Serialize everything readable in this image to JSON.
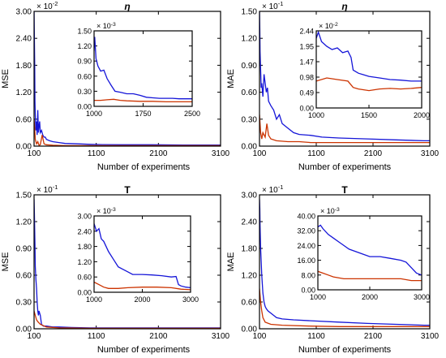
{
  "chart_data": [
    {
      "type": "line",
      "title": "η",
      "xlabel": "Number of experiments",
      "ylabel": "MSE",
      "xlim": [
        100,
        3100
      ],
      "ylim": [
        0,
        3.0
      ],
      "xticks": [
        "100",
        "1100",
        "2100",
        "3100"
      ],
      "yticks": [
        "0.00",
        "0.60",
        "1.20",
        "1.80",
        "2.40",
        "3.00"
      ],
      "exponent": "× 10^-2",
      "series": [
        {
          "color": "#1515d8",
          "x": [
            100,
            105,
            110,
            115,
            120,
            130,
            140,
            150,
            160,
            170,
            180,
            190,
            200,
            220,
            240,
            260,
            280,
            300,
            350,
            400,
            500,
            600,
            800,
            1000,
            1200,
            1500,
            2000,
            2500,
            3000,
            3100
          ],
          "values": [
            3.0,
            2.4,
            1.8,
            1.0,
            0.7,
            0.35,
            0.55,
            0.25,
            0.8,
            0.3,
            0.45,
            0.55,
            0.3,
            0.35,
            0.25,
            0.2,
            0.2,
            0.15,
            0.12,
            0.1,
            0.08,
            0.06,
            0.05,
            0.04,
            0.035,
            0.03,
            0.03,
            0.025,
            0.025,
            0.025
          ]
        },
        {
          "color": "#cc3300",
          "x": [
            100,
            110,
            120,
            140,
            160,
            180,
            200,
            230,
            260,
            300,
            400,
            600,
            1000,
            1500,
            2000,
            3100
          ],
          "values": [
            0.6,
            0.4,
            0.15,
            0.05,
            0.1,
            0.02,
            0.03,
            0.25,
            0.05,
            0.03,
            0.02,
            0.01,
            0.01,
            0.01,
            0.01,
            0.01
          ]
        }
      ],
      "inset": {
        "xlim": [
          1000,
          2500
        ],
        "ylim": [
          0,
          1.5
        ],
        "xticks": [
          "1000",
          "1750",
          "2500"
        ],
        "yticks": [
          "0.00",
          "0.30",
          "0.60",
          "0.90",
          "1.20",
          "1.50"
        ],
        "exponent": "× 10^-3",
        "series": [
          {
            "color": "#1515d8",
            "x": [
              1000,
              1010,
              1030,
              1060,
              1100,
              1150,
              1200,
              1260,
              1320,
              1400,
              1500,
              1600,
              1700,
              1800,
              1900,
              2000,
              2100,
              2200,
              2300,
              2400,
              2500
            ],
            "values": [
              1.1,
              1.38,
              0.95,
              0.8,
              0.7,
              0.72,
              0.55,
              0.42,
              0.3,
              0.28,
              0.25,
              0.25,
              0.22,
              0.18,
              0.17,
              0.16,
              0.16,
              0.16,
              0.15,
              0.15,
              0.15
            ]
          },
          {
            "color": "#cc3300",
            "x": [
              1000,
              1100,
              1200,
              1300,
              1400,
              1500,
              1700,
              1900,
              2100,
              2300,
              2500
            ],
            "values": [
              0.12,
              0.12,
              0.13,
              0.14,
              0.12,
              0.11,
              0.1,
              0.1,
              0.09,
              0.09,
              0.09
            ]
          }
        ]
      }
    },
    {
      "type": "line",
      "title": "η",
      "xlabel": "Number of experiments",
      "ylabel": "MAE",
      "xlim": [
        100,
        3100
      ],
      "ylim": [
        0,
        1.5
      ],
      "xticks": [
        "100",
        "1100",
        "2100",
        "3100"
      ],
      "yticks": [
        "0.00",
        "0.30",
        "0.60",
        "0.90",
        "1.20",
        "1.50"
      ],
      "exponent": "× 10^-1",
      "series": [
        {
          "color": "#1515d8",
          "x": [
            100,
            105,
            110,
            120,
            130,
            140,
            160,
            180,
            200,
            220,
            240,
            260,
            300,
            350,
            400,
            450,
            500,
            600,
            700,
            800,
            1000,
            1200,
            1500,
            2000,
            2500,
            3000,
            3100
          ],
          "values": [
            1.5,
            1.3,
            1.05,
            0.85,
            0.65,
            0.7,
            0.55,
            0.8,
            0.7,
            0.6,
            0.65,
            0.5,
            0.45,
            0.4,
            0.3,
            0.35,
            0.25,
            0.2,
            0.15,
            0.13,
            0.12,
            0.1,
            0.09,
            0.08,
            0.07,
            0.06,
            0.06
          ]
        },
        {
          "color": "#cc3300",
          "x": [
            100,
            110,
            120,
            140,
            160,
            200,
            230,
            260,
            300,
            400,
            600,
            800,
            1000,
            1500,
            2000,
            2500,
            3100
          ],
          "values": [
            0.35,
            0.25,
            0.15,
            0.08,
            0.15,
            0.1,
            0.25,
            0.12,
            0.08,
            0.06,
            0.05,
            0.05,
            0.04,
            0.04,
            0.04,
            0.04,
            0.04
          ]
        }
      ],
      "inset": {
        "xlim": [
          1000,
          2000
        ],
        "ylim": [
          0,
          2.44
        ],
        "xticks": [
          "1000",
          "1500",
          "2000"
        ],
        "yticks": [
          "0.00",
          "0.49",
          "0.98",
          "1.47",
          "1.95",
          "2.44"
        ],
        "exponent": "× 10^-2",
        "series": [
          {
            "color": "#1515d8",
            "x": [
              1000,
              1020,
              1050,
              1100,
              1150,
              1200,
              1250,
              1300,
              1330,
              1350,
              1400,
              1450,
              1500,
              1600,
              1700,
              1800,
              1900,
              2000
            ],
            "values": [
              2.2,
              2.4,
              2.1,
              1.95,
              1.85,
              1.9,
              1.75,
              1.8,
              1.6,
              1.2,
              1.1,
              1.05,
              1.0,
              0.95,
              0.9,
              0.88,
              0.85,
              0.85
            ]
          },
          {
            "color": "#cc3300",
            "x": [
              1000,
              1100,
              1200,
              1300,
              1350,
              1400,
              1500,
              1600,
              1700,
              1800,
              1900,
              2000
            ],
            "values": [
              0.85,
              0.95,
              0.9,
              0.85,
              0.65,
              0.6,
              0.55,
              0.6,
              0.62,
              0.6,
              0.62,
              0.65
            ]
          }
        ]
      }
    },
    {
      "type": "line",
      "title": "T",
      "xlabel": "Number of experiments",
      "ylabel": "MSE",
      "xlim": [
        100,
        3100
      ],
      "ylim": [
        0,
        1.5
      ],
      "xticks": [
        "100",
        "1100",
        "2100",
        "3100"
      ],
      "yticks": [
        "0.00",
        "0.30",
        "0.60",
        "0.90",
        "1.20",
        "1.50"
      ],
      "exponent": "× 10^-1",
      "series": [
        {
          "color": "#1515d8",
          "x": [
            100,
            105,
            110,
            115,
            120,
            130,
            140,
            150,
            160,
            170,
            180,
            200,
            220,
            250,
            300,
            400,
            500,
            700,
            1000,
            1500,
            2000,
            2500,
            3000,
            3100
          ],
          "values": [
            1.45,
            1.3,
            1.1,
            0.95,
            0.7,
            0.55,
            0.45,
            0.3,
            0.2,
            0.15,
            0.2,
            0.15,
            0.05,
            0.03,
            0.03,
            0.02,
            0.02,
            0.015,
            0.01,
            0.01,
            0.01,
            0.01,
            0.01,
            0.01
          ]
        },
        {
          "color": "#cc3300",
          "x": [
            100,
            120,
            140,
            160,
            200,
            300,
            500,
            1000,
            1500,
            2000,
            3100
          ],
          "values": [
            0.2,
            0.15,
            0.1,
            0.08,
            0.05,
            0.02,
            0.01,
            0.005,
            0.005,
            0.005,
            0.005
          ]
        }
      ],
      "inset": {
        "xlim": [
          1000,
          3000
        ],
        "ylim": [
          0,
          3.0
        ],
        "xticks": [
          "1000",
          "2000",
          "3000"
        ],
        "yticks": [
          "0.00",
          "0.60",
          "1.20",
          "1.80",
          "2.40",
          "3.00"
        ],
        "exponent": "× 10^-3",
        "series": [
          {
            "color": "#1515d8",
            "x": [
              1000,
              1050,
              1100,
              1150,
              1200,
              1300,
              1400,
              1500,
              1600,
              1700,
              1800,
              2000,
              2200,
              2400,
              2600,
              2700,
              2750,
              2800,
              2900,
              3000
            ],
            "values": [
              2.7,
              2.4,
              2.5,
              2.1,
              2.0,
              1.6,
              1.3,
              1.0,
              0.9,
              0.8,
              0.7,
              0.7,
              0.68,
              0.65,
              0.6,
              0.62,
              0.3,
              0.25,
              0.2,
              0.18
            ]
          },
          {
            "color": "#cc3300",
            "x": [
              1000,
              1100,
              1200,
              1300,
              1500,
              1700,
              2000,
              2300,
              2600,
              2800,
              3000
            ],
            "values": [
              0.4,
              0.3,
              0.2,
              0.15,
              0.15,
              0.18,
              0.2,
              0.2,
              0.18,
              0.12,
              0.1
            ]
          }
        ]
      }
    },
    {
      "type": "line",
      "title": "T",
      "xlabel": "Number of experiments",
      "ylabel": "MAE",
      "xlim": [
        100,
        3100
      ],
      "ylim": [
        0,
        3.0
      ],
      "xticks": [
        "100",
        "1100",
        "2100",
        "3100"
      ],
      "yticks": [
        "0.00",
        "0.60",
        "1.20",
        "1.80",
        "2.40",
        "3.00"
      ],
      "exponent": "× 10^-1",
      "series": [
        {
          "color": "#1515d8",
          "x": [
            100,
            105,
            110,
            120,
            130,
            140,
            150,
            160,
            180,
            200,
            220,
            250,
            300,
            350,
            400,
            500,
            700,
            1000,
            1500,
            2000,
            2500,
            3000,
            3100
          ],
          "values": [
            2.9,
            2.7,
            2.3,
            1.8,
            1.5,
            1.2,
            1.0,
            0.8,
            0.6,
            0.5,
            0.45,
            0.4,
            0.35,
            0.3,
            0.25,
            0.22,
            0.2,
            0.18,
            0.15,
            0.12,
            0.1,
            0.08,
            0.08
          ]
        },
        {
          "color": "#cc3300",
          "x": [
            100,
            120,
            140,
            160,
            200,
            300,
            500,
            1000,
            1500,
            2000,
            3100
          ],
          "values": [
            0.9,
            0.6,
            0.4,
            0.25,
            0.15,
            0.1,
            0.08,
            0.06,
            0.05,
            0.05,
            0.05
          ]
        }
      ],
      "inset": {
        "xlim": [
          1000,
          3000
        ],
        "ylim": [
          0,
          40
        ],
        "xticks": [
          "1000",
          "2000",
          "3000"
        ],
        "yticks": [
          "0.00",
          "8.00",
          "16.00",
          "24.00",
          "32.00",
          "40.00"
        ],
        "exponent": "× 10^-3",
        "series": [
          {
            "color": "#1515d8",
            "x": [
              1000,
              1050,
              1100,
              1200,
              1300,
              1400,
              1500,
              1600,
              1800,
              2000,
              2200,
              2400,
              2600,
              2700,
              2800,
              2900,
              3000
            ],
            "values": [
              34,
              35,
              33,
              30,
              28,
              26,
              24,
              22,
              20,
              18,
              18,
              17,
              16,
              15,
              12,
              9,
              8
            ]
          },
          {
            "color": "#cc3300",
            "x": [
              1000,
              1100,
              1200,
              1300,
              1500,
              1700,
              2000,
              2300,
              2600,
              2800,
              3000
            ],
            "values": [
              10,
              9,
              8,
              7,
              6,
              6,
              6,
              6,
              6,
              5,
              5
            ]
          }
        ]
      }
    }
  ]
}
